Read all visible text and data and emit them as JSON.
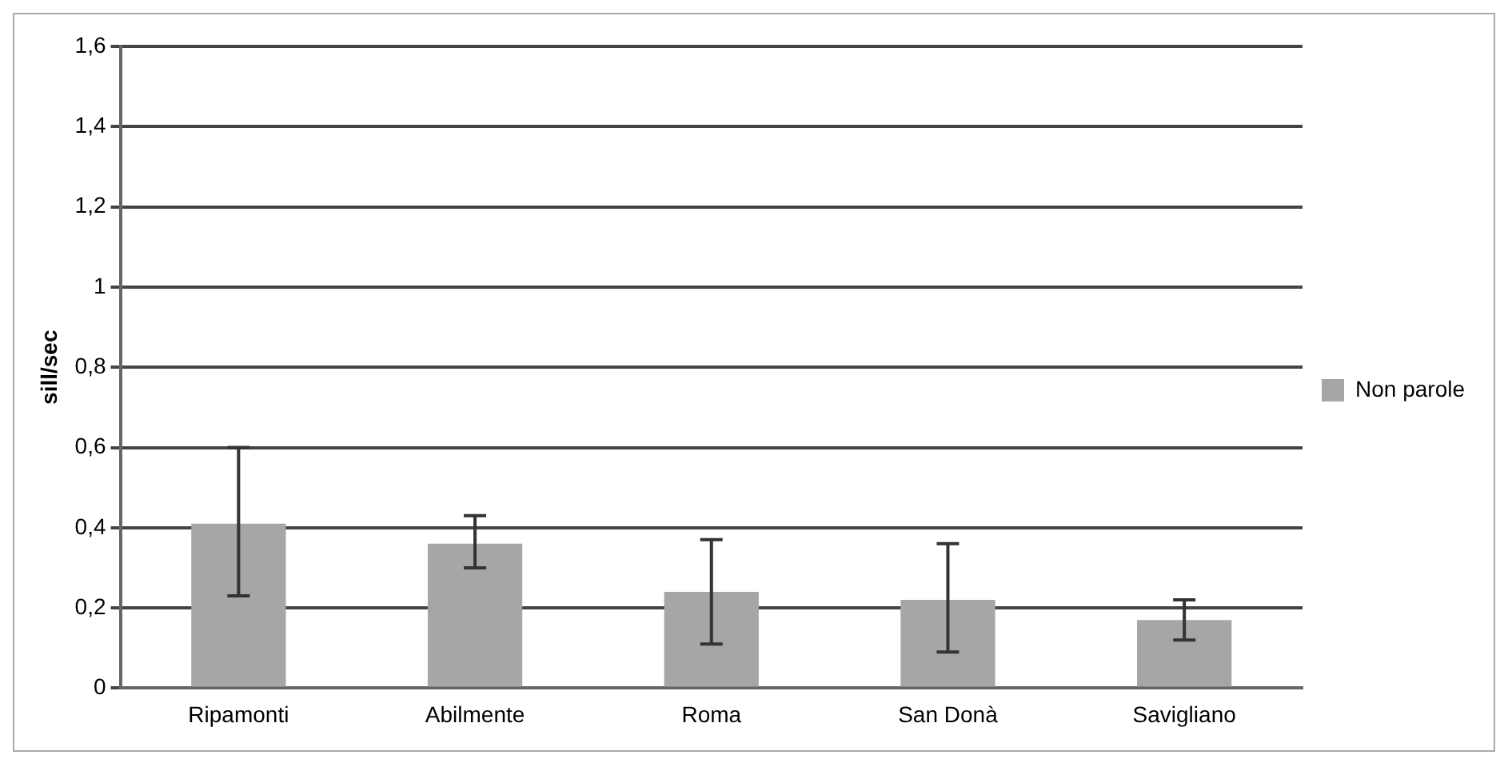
{
  "chart_data": {
    "type": "bar",
    "ylabel": "sill/sec",
    "categories": [
      "Ripamonti",
      "Abilmente",
      "Roma",
      "San Donà",
      "Savigliano"
    ],
    "series": [
      {
        "name": "Non parole",
        "color": "#a6a6a6",
        "values": [
          0.41,
          0.36,
          0.24,
          0.22,
          0.17
        ],
        "errors": [
          [
            0.23,
            0.6
          ],
          [
            0.3,
            0.43
          ],
          [
            0.11,
            0.37
          ],
          [
            0.09,
            0.36
          ],
          [
            0.12,
            0.22
          ]
        ]
      }
    ],
    "ylim": [
      0,
      1.6
    ],
    "yticks": [
      0,
      {
        "value": 0.2,
        "label": "0,2"
      },
      {
        "value": 0.4,
        "label": "0,4"
      },
      {
        "value": 0.6,
        "label": "0,6"
      },
      {
        "value": 0.8,
        "label": "0,8"
      },
      1,
      {
        "value": 1.2,
        "label": "1,2"
      },
      {
        "value": 1.4,
        "label": "1,4"
      },
      {
        "value": 1.6,
        "label": "1,6"
      }
    ],
    "grid": "y",
    "legend": "right"
  }
}
